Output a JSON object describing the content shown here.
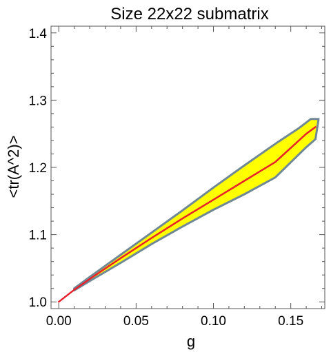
{
  "chart_data": {
    "type": "area",
    "title": "Size 22x22 submatrix",
    "xlabel": "g",
    "ylabel": "<tr(A^2)>",
    "xlim": [
      -0.005,
      0.172
    ],
    "ylim": [
      0.99,
      1.41
    ],
    "x_ticks": [
      0.0,
      0.05,
      0.1,
      0.15
    ],
    "x_tick_labels": [
      "0.00",
      "0.05",
      "0.10",
      "0.15"
    ],
    "y_ticks": [
      1.0,
      1.1,
      1.2,
      1.3,
      1.4
    ],
    "y_tick_labels": [
      "1.0",
      "1.1",
      "1.2",
      "1.3",
      "1.4"
    ],
    "grid": false,
    "series": [
      {
        "role": "mean",
        "x": [
          0.0,
          0.01,
          0.02,
          0.04,
          0.06,
          0.08,
          0.1,
          0.12,
          0.14,
          0.16,
          0.166
        ],
        "y": [
          1.0,
          1.018,
          1.034,
          1.065,
          1.095,
          1.124,
          1.152,
          1.18,
          1.208,
          1.25,
          1.26
        ]
      },
      {
        "role": "upper",
        "x": [
          0.01,
          0.02,
          0.04,
          0.06,
          0.08,
          0.1,
          0.12,
          0.14,
          0.155,
          0.163,
          0.168
        ],
        "y": [
          1.02,
          1.037,
          1.07,
          1.103,
          1.136,
          1.17,
          1.203,
          1.235,
          1.258,
          1.272,
          1.272
        ]
      },
      {
        "role": "lower",
        "x": [
          0.01,
          0.02,
          0.04,
          0.06,
          0.08,
          0.1,
          0.12,
          0.14,
          0.16,
          0.166
        ],
        "y": [
          1.017,
          1.031,
          1.058,
          1.086,
          1.112,
          1.137,
          1.16,
          1.185,
          1.23,
          1.242
        ]
      }
    ],
    "colors": {
      "band_fill": "#ffff00",
      "band_edge": "#6f8896",
      "mean_line": "#e8202a"
    }
  }
}
